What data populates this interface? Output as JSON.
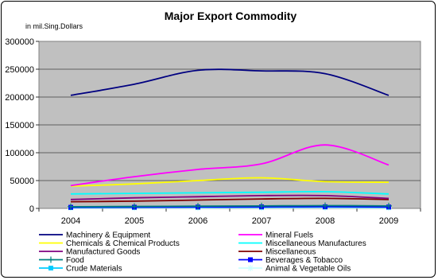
{
  "chart_data": {
    "type": "line",
    "title": "Major Export Commodity",
    "ylabel": "in mil.Sing.Dollars",
    "xlabel": "",
    "x": [
      "2004",
      "2005",
      "2006",
      "2007",
      "2008",
      "2009"
    ],
    "ylim": [
      0,
      300000
    ],
    "yticks": [
      0,
      50000,
      100000,
      150000,
      200000,
      250000,
      300000
    ],
    "grid": "horizontal",
    "plot_background": "#c0c0c0",
    "legend_position": "bottom",
    "series": [
      {
        "name": "Machinery & Equipment",
        "color": "#000080",
        "marker": "none",
        "values": [
          203000,
          223000,
          248000,
          247000,
          242000,
          203000
        ]
      },
      {
        "name": "Mineral Fuels",
        "color": "#ff00ff",
        "marker": "none",
        "values": [
          41000,
          57000,
          70000,
          80000,
          114000,
          78000
        ]
      },
      {
        "name": "Chemicals & Chemical Products",
        "color": "#ffff00",
        "marker": "none",
        "values": [
          40000,
          44000,
          50000,
          55000,
          48000,
          47000
        ]
      },
      {
        "name": "Miscellaneous Manufactures",
        "color": "#00ffff",
        "marker": "none",
        "values": [
          26000,
          27000,
          28000,
          29000,
          30000,
          26000
        ]
      },
      {
        "name": "Manufactured Goods",
        "color": "#800080",
        "marker": "none",
        "values": [
          16000,
          19000,
          21000,
          23000,
          23000,
          18000
        ]
      },
      {
        "name": "Miscellaneous",
        "color": "#800000",
        "marker": "none",
        "values": [
          12000,
          13000,
          15000,
          17000,
          18000,
          16000
        ]
      },
      {
        "name": "Food",
        "color": "#008080",
        "marker": "plus",
        "values": [
          3000,
          3500,
          4000,
          4500,
          5000,
          4500
        ]
      },
      {
        "name": "Beverages & Tobacco",
        "color": "#0000ff",
        "marker": "square",
        "values": [
          2000,
          2200,
          2500,
          2800,
          3000,
          2600
        ]
      },
      {
        "name": "Crude Materials",
        "color": "#00ccff",
        "marker": "square",
        "values": [
          1500,
          1800,
          2000,
          2200,
          2500,
          2000
        ]
      },
      {
        "name": "Animal & Vegetable Oils",
        "color": "#ccffff",
        "marker": "star",
        "values": [
          800,
          900,
          1000,
          1100,
          1200,
          1000
        ]
      }
    ]
  }
}
